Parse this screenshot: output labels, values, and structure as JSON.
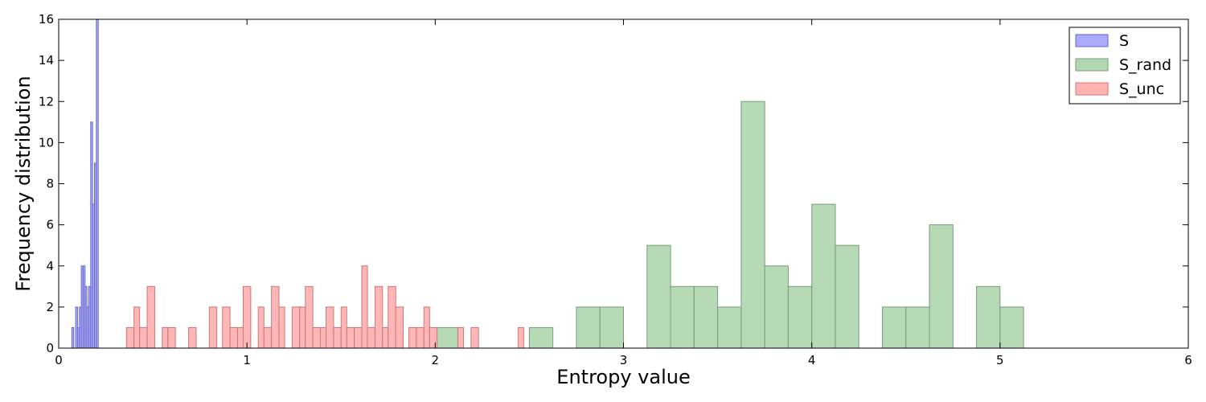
{
  "chart_data": {
    "type": "histogram",
    "title": "",
    "xlabel": "Entropy value",
    "ylabel": "Frequency distribution",
    "xlim": [
      0,
      6
    ],
    "ylim": [
      0,
      16
    ],
    "xticks": [
      0,
      1,
      2,
      3,
      4,
      5,
      6
    ],
    "yticks": [
      0,
      2,
      4,
      6,
      8,
      10,
      12,
      14,
      16
    ],
    "grid": false,
    "legend_position": "top-right",
    "series": [
      {
        "name": "S",
        "color": "#aaaaff",
        "edge_color": "#6666cc",
        "bins": [
          {
            "x0": 0.07,
            "x1": 0.08,
            "count": 1
          },
          {
            "x0": 0.09,
            "x1": 0.1,
            "count": 2
          },
          {
            "x0": 0.1,
            "x1": 0.11,
            "count": 1
          },
          {
            "x0": 0.11,
            "x1": 0.12,
            "count": 2
          },
          {
            "x0": 0.12,
            "x1": 0.13,
            "count": 4
          },
          {
            "x0": 0.13,
            "x1": 0.14,
            "count": 4
          },
          {
            "x0": 0.14,
            "x1": 0.15,
            "count": 3
          },
          {
            "x0": 0.15,
            "x1": 0.16,
            "count": 2
          },
          {
            "x0": 0.16,
            "x1": 0.17,
            "count": 3
          },
          {
            "x0": 0.17,
            "x1": 0.18,
            "count": 11
          },
          {
            "x0": 0.18,
            "x1": 0.19,
            "count": 7
          },
          {
            "x0": 0.19,
            "x1": 0.2,
            "count": 9
          },
          {
            "x0": 0.2,
            "x1": 0.21,
            "count": 16
          }
        ]
      },
      {
        "name": "S_rand",
        "color": "#b2d8b2",
        "edge_color": "#7a9a7a",
        "bins": [
          {
            "x0": 2.0,
            "x1": 2.125,
            "count": 1
          },
          {
            "x0": 2.5,
            "x1": 2.625,
            "count": 1
          },
          {
            "x0": 2.75,
            "x1": 2.875,
            "count": 2
          },
          {
            "x0": 2.875,
            "x1": 3.0,
            "count": 2
          },
          {
            "x0": 3.125,
            "x1": 3.25,
            "count": 5
          },
          {
            "x0": 3.25,
            "x1": 3.375,
            "count": 3
          },
          {
            "x0": 3.375,
            "x1": 3.5,
            "count": 3
          },
          {
            "x0": 3.5,
            "x1": 3.625,
            "count": 2
          },
          {
            "x0": 3.625,
            "x1": 3.75,
            "count": 12
          },
          {
            "x0": 3.75,
            "x1": 3.875,
            "count": 4
          },
          {
            "x0": 3.875,
            "x1": 4.0,
            "count": 3
          },
          {
            "x0": 4.0,
            "x1": 4.125,
            "count": 7
          },
          {
            "x0": 4.125,
            "x1": 4.25,
            "count": 5
          },
          {
            "x0": 4.375,
            "x1": 4.5,
            "count": 2
          },
          {
            "x0": 4.5,
            "x1": 4.625,
            "count": 2
          },
          {
            "x0": 4.625,
            "x1": 4.75,
            "count": 6
          },
          {
            "x0": 4.875,
            "x1": 5.0,
            "count": 3
          },
          {
            "x0": 5.0,
            "x1": 5.125,
            "count": 2
          }
        ]
      },
      {
        "name": "S_unc",
        "color": "#ffb2b2",
        "edge_color": "#cc7777",
        "bins": [
          {
            "x0": 0.36,
            "x1": 0.4,
            "count": 1
          },
          {
            "x0": 0.4,
            "x1": 0.43,
            "count": 2
          },
          {
            "x0": 0.43,
            "x1": 0.47,
            "count": 1
          },
          {
            "x0": 0.47,
            "x1": 0.51,
            "count": 3
          },
          {
            "x0": 0.55,
            "x1": 0.58,
            "count": 1
          },
          {
            "x0": 0.58,
            "x1": 0.62,
            "count": 1
          },
          {
            "x0": 0.69,
            "x1": 0.73,
            "count": 1
          },
          {
            "x0": 0.8,
            "x1": 0.84,
            "count": 2
          },
          {
            "x0": 0.87,
            "x1": 0.91,
            "count": 2
          },
          {
            "x0": 0.91,
            "x1": 0.95,
            "count": 1
          },
          {
            "x0": 0.95,
            "x1": 0.98,
            "count": 1
          },
          {
            "x0": 0.98,
            "x1": 1.02,
            "count": 3
          },
          {
            "x0": 1.06,
            "x1": 1.09,
            "count": 2
          },
          {
            "x0": 1.09,
            "x1": 1.13,
            "count": 1
          },
          {
            "x0": 1.13,
            "x1": 1.17,
            "count": 3
          },
          {
            "x0": 1.17,
            "x1": 1.2,
            "count": 2
          },
          {
            "x0": 1.24,
            "x1": 1.28,
            "count": 2
          },
          {
            "x0": 1.28,
            "x1": 1.31,
            "count": 2
          },
          {
            "x0": 1.31,
            "x1": 1.35,
            "count": 3
          },
          {
            "x0": 1.35,
            "x1": 1.39,
            "count": 1
          },
          {
            "x0": 1.39,
            "x1": 1.42,
            "count": 1
          },
          {
            "x0": 1.42,
            "x1": 1.46,
            "count": 2
          },
          {
            "x0": 1.46,
            "x1": 1.5,
            "count": 1
          },
          {
            "x0": 1.5,
            "x1": 1.53,
            "count": 2
          },
          {
            "x0": 1.53,
            "x1": 1.57,
            "count": 1
          },
          {
            "x0": 1.57,
            "x1": 1.61,
            "count": 1
          },
          {
            "x0": 1.61,
            "x1": 1.64,
            "count": 4
          },
          {
            "x0": 1.64,
            "x1": 1.68,
            "count": 1
          },
          {
            "x0": 1.68,
            "x1": 1.72,
            "count": 3
          },
          {
            "x0": 1.72,
            "x1": 1.75,
            "count": 1
          },
          {
            "x0": 1.75,
            "x1": 1.79,
            "count": 3
          },
          {
            "x0": 1.79,
            "x1": 1.83,
            "count": 2
          },
          {
            "x0": 1.86,
            "x1": 1.9,
            "count": 1
          },
          {
            "x0": 1.9,
            "x1": 1.94,
            "count": 1
          },
          {
            "x0": 1.94,
            "x1": 1.97,
            "count": 2
          },
          {
            "x0": 1.97,
            "x1": 2.01,
            "count": 1
          },
          {
            "x0": 2.12,
            "x1": 2.15,
            "count": 1
          },
          {
            "x0": 2.19,
            "x1": 2.23,
            "count": 1
          },
          {
            "x0": 2.44,
            "x1": 2.47,
            "count": 1
          }
        ]
      }
    ]
  }
}
